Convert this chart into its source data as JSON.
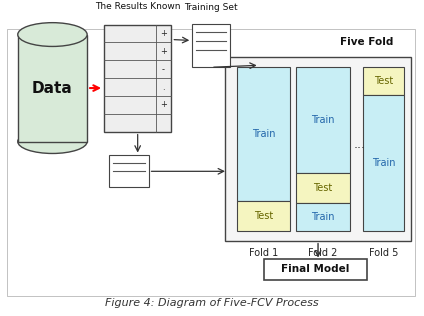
{
  "title": "Figure 4: Diagram of Five-FCV Process",
  "bg": "#ffffff",
  "light_blue": "#c8eef5",
  "light_yellow": "#f5f5c0",
  "edge_dark": "#444444",
  "cyl_color": "#d8ead8",
  "label_results_known": "The Results Known",
  "label_training_set": "Training Set",
  "label_five_fold": "Five Fold",
  "label_final_model": "Final Model",
  "label_data": "Data",
  "label_train": "Train",
  "label_test": "Test",
  "label_dots": "...",
  "fold_labels": [
    "Fold 1",
    "Fold 2",
    "Fold 5"
  ]
}
